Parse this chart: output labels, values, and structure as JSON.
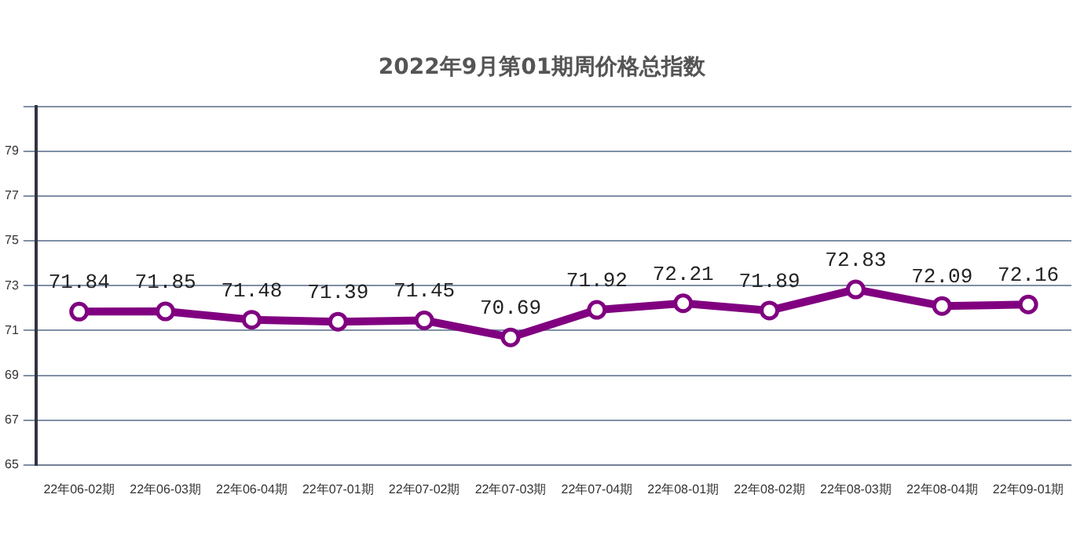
{
  "chart_data": {
    "type": "line",
    "title": "2022年9月第01期周价格总指数",
    "categories": [
      "22年06-02期",
      "22年06-03期",
      "22年06-04期",
      "22年07-01期",
      "22年07-02期",
      "22年07-03期",
      "22年07-04期",
      "22年08-01期",
      "22年08-02期",
      "22年08-03期",
      "22年08-04期",
      "22年09-01期"
    ],
    "series": [
      {
        "color": "#800080",
        "values": [
          71.84,
          71.85,
          71.48,
          71.39,
          71.45,
          70.69,
          71.92,
          72.21,
          71.89,
          72.83,
          72.09,
          72.16
        ]
      }
    ],
    "ylim": [
      65,
      81
    ],
    "yticks": [
      65,
      67,
      69,
      71,
      73,
      75,
      77,
      79,
      {
        "value": 81,
        "label": null
      }
    ],
    "grid": "y",
    "marker": "circle",
    "line_style": "solid",
    "data_labels": true,
    "legend": false
  }
}
